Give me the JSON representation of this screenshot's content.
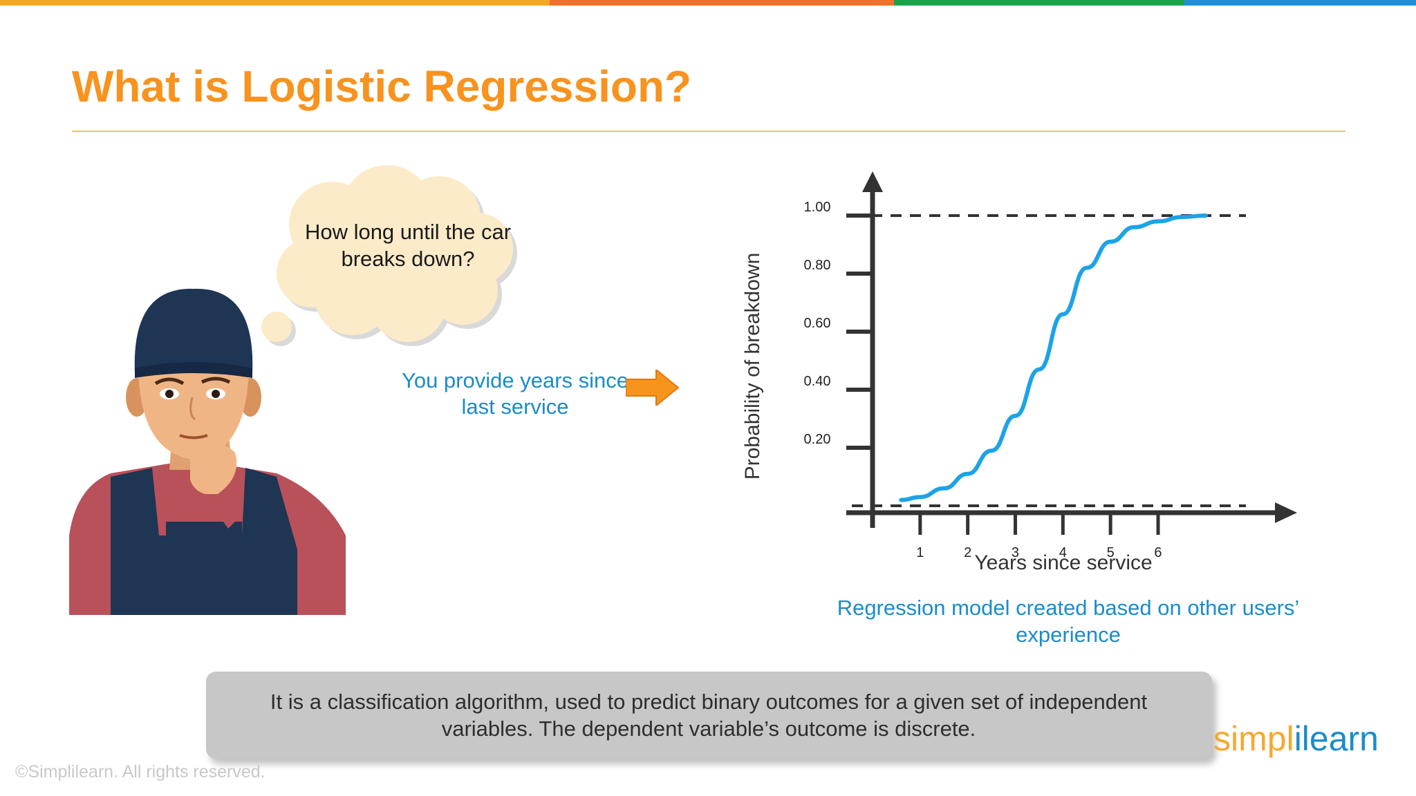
{
  "slide": {
    "title": "What is Logistic Regression?",
    "top_bar_colors": [
      "#f7a823",
      "#f0712c",
      "#1aa34a",
      "#1e8fd6"
    ],
    "thought": "How long until the car breaks down?",
    "input_note": "You provide years since last service",
    "chart_caption": "Regression model created based on other users’ experience",
    "definition": "It is a classification algorithm, used to predict binary outcomes for a given set of independent variables. The dependent variable’s outcome is discrete.",
    "copyright": "©Simplilearn. All rights reserved.",
    "logo_part1": "simpl",
    "logo_part2": "ilearn",
    "accent_color": "#f7931e",
    "curve_color": "#1ca3e8"
  },
  "icons": [
    "thought-cloud-icon",
    "mechanic-illustration",
    "arrow-right-icon"
  ],
  "chart_data": {
    "type": "line",
    "title": "",
    "xlabel": "Years since service",
    "ylabel": "Probability of breakdown",
    "x_ticks": [
      "1",
      "2",
      "3",
      "4",
      "5",
      "6"
    ],
    "y_ticks": [
      "0.20",
      "0.40",
      "0.60",
      "0.80",
      "1.00"
    ],
    "xlim": [
      0,
      7.7
    ],
    "ylim": [
      0,
      1.0
    ],
    "reference_lines": [
      0,
      1.0
    ],
    "grid": false,
    "series": [
      {
        "points": [
          [
            0.6,
            0.02
          ],
          [
            1.0,
            0.03
          ],
          [
            1.5,
            0.06
          ],
          [
            2.0,
            0.11
          ],
          [
            2.5,
            0.19
          ],
          [
            3.0,
            0.31
          ],
          [
            3.5,
            0.47
          ],
          [
            4.0,
            0.66
          ],
          [
            4.5,
            0.82
          ],
          [
            5.0,
            0.91
          ],
          [
            5.5,
            0.96
          ],
          [
            6.0,
            0.98
          ],
          [
            6.5,
            0.995
          ],
          [
            7.0,
            1.0
          ]
        ]
      }
    ]
  }
}
